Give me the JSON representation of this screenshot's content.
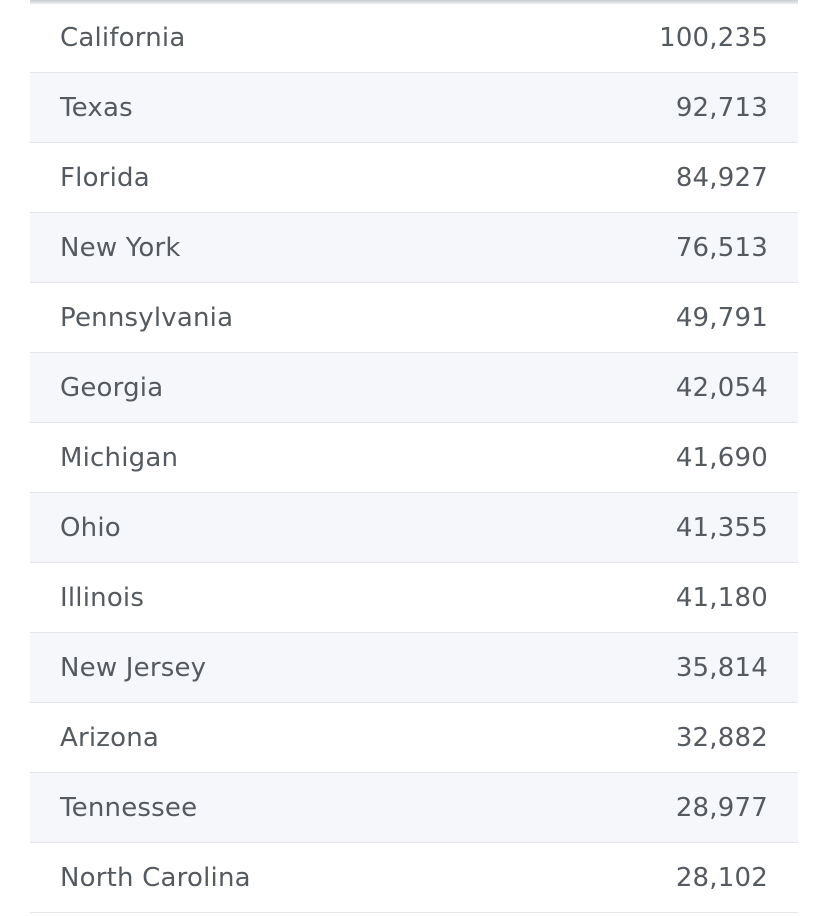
{
  "table": {
    "rows": [
      [
        "California",
        "100,235"
      ],
      [
        "Texas",
        "92,713"
      ],
      [
        "Florida",
        "84,927"
      ],
      [
        "New York",
        "76,513"
      ],
      [
        "Pennsylvania",
        "49,791"
      ],
      [
        "Georgia",
        "42,054"
      ],
      [
        "Michigan",
        "41,690"
      ],
      [
        "Ohio",
        "41,355"
      ],
      [
        "Illinois",
        "41,180"
      ],
      [
        "New Jersey",
        "35,814"
      ],
      [
        "Arizona",
        "32,882"
      ],
      [
        "Tennessee",
        "28,977"
      ],
      [
        "North Carolina",
        "28,102"
      ]
    ]
  }
}
